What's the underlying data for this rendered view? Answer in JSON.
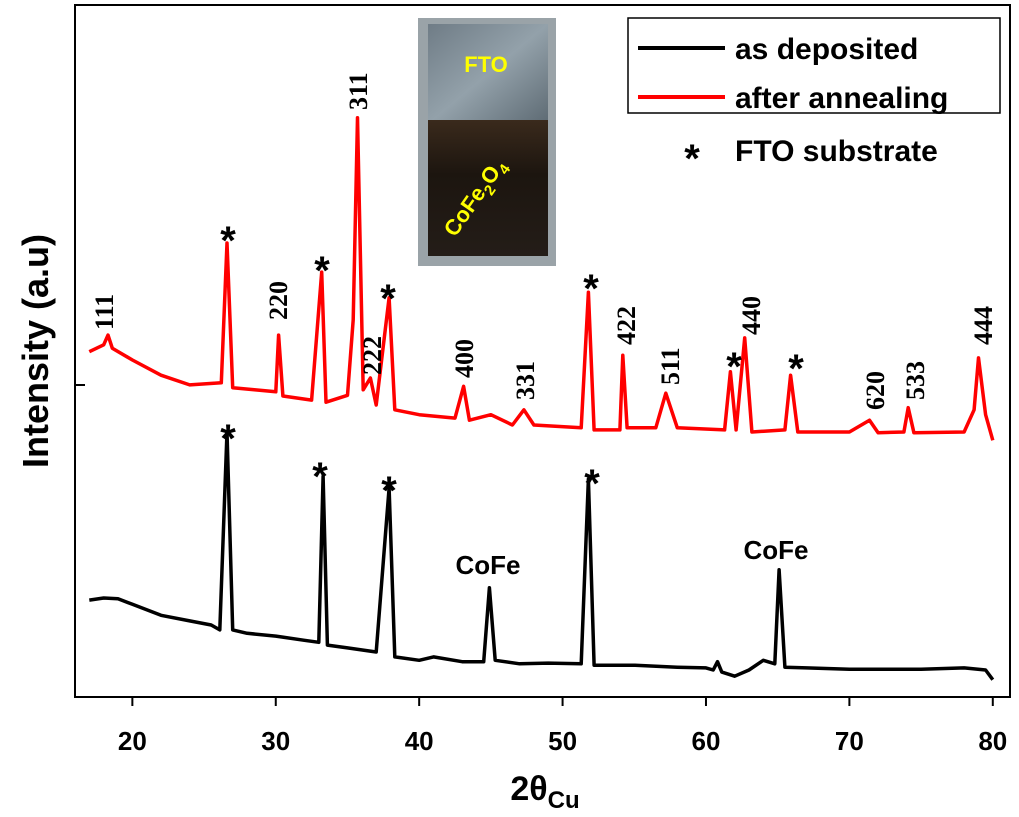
{
  "chart_data": {
    "type": "line",
    "x_label": "2θ",
    "x_label_sub": "Cu",
    "y_label": "Intensity (a.u)",
    "xlim": [
      16,
      81.2
    ],
    "ylim": [
      0,
      100
    ],
    "xticks": [
      20,
      30,
      40,
      50,
      60,
      70,
      80
    ],
    "legend_position": "upper right",
    "marker_symbol": "*",
    "marker_label": "FTO substrate",
    "series": [
      {
        "name": "as deposited",
        "color": "#000000",
        "x": [
          17,
          18,
          19,
          20,
          22,
          24,
          25.5,
          26.1,
          26.6,
          27.0,
          28,
          30,
          32,
          33.0,
          33.3,
          33.6,
          35,
          37,
          37.9,
          38.3,
          40,
          41,
          43,
          44.5,
          44.9,
          45.3,
          47,
          49,
          51.3,
          51.8,
          52.2,
          55,
          58,
          60,
          60.5,
          60.8,
          61.1,
          62,
          63,
          64,
          64.8,
          65.1,
          65.5,
          67,
          70,
          75,
          78,
          79.5,
          80
        ],
        "values": [
          14.0,
          14.3,
          14.2,
          13.4,
          11.8,
          11.0,
          10.4,
          9.7,
          38.3,
          9.7,
          9.2,
          8.8,
          8.2,
          7.9,
          31.9,
          7.5,
          7.1,
          6.5,
          30.2,
          5.8,
          5.3,
          5.8,
          5.1,
          5.1,
          15.8,
          5.3,
          4.8,
          4.9,
          4.8,
          31.5,
          4.6,
          4.6,
          4.3,
          4.2,
          3.9,
          5.1,
          3.6,
          3.0,
          3.9,
          5.3,
          4.8,
          18.4,
          4.3,
          4.2,
          4.0,
          4.0,
          4.2,
          3.9,
          2.5
        ]
      },
      {
        "name": "after annealing",
        "color": "#ff0000",
        "x": [
          17,
          18,
          18.3,
          18.6,
          20,
          22,
          24,
          26.2,
          26.6,
          27.0,
          28.5,
          30.0,
          30.2,
          30.5,
          32.5,
          33.2,
          33.5,
          35.0,
          35.4,
          35.7,
          36.1,
          36.6,
          37.0,
          37.9,
          38.3,
          40,
          42.5,
          43.1,
          43.5,
          45,
          46.5,
          47.3,
          48,
          51.3,
          51.8,
          52.2,
          54.0,
          54.2,
          54.5,
          56.5,
          57.2,
          58,
          61.3,
          61.7,
          62.1,
          62.7,
          63.2,
          65.5,
          65.9,
          66.4,
          70,
          71.4,
          72,
          73.8,
          74.1,
          74.5,
          78,
          78.7,
          79.0,
          79.5,
          80
        ],
        "values": [
          49.9,
          50.9,
          52.3,
          50.4,
          48.7,
          46.5,
          45.1,
          45.4,
          65.6,
          44.7,
          44.4,
          44.1,
          52.3,
          43.5,
          42.9,
          61.4,
          42.6,
          43.6,
          54.5,
          83.7,
          44.4,
          46.1,
          42.2,
          57.7,
          41.5,
          40.8,
          40.3,
          44.9,
          40.0,
          40.8,
          39.3,
          41.5,
          39.3,
          38.9,
          58.5,
          38.6,
          38.6,
          49.4,
          38.9,
          38.9,
          43.9,
          38.9,
          38.6,
          47.0,
          38.6,
          51.9,
          38.3,
          38.6,
          46.5,
          38.3,
          38.3,
          40.0,
          38.2,
          38.3,
          41.8,
          38.2,
          38.3,
          41.5,
          49.0,
          40.8,
          37.1
        ]
      }
    ],
    "peak_labels": [
      "111",
      "220",
      "311",
      "222",
      "400",
      "331",
      "422",
      "511",
      "440",
      "620",
      "533",
      "444"
    ],
    "phase_labels": [
      "CoFe",
      "CoFe"
    ],
    "inset": {
      "top_label": "FTO",
      "bottom_label_parts": [
        {
          "text": "CoFe"
        },
        {
          "text": "2",
          "sub": true
        },
        {
          "text": "O"
        },
        {
          "text": "4",
          "sub": true
        }
      ]
    }
  }
}
